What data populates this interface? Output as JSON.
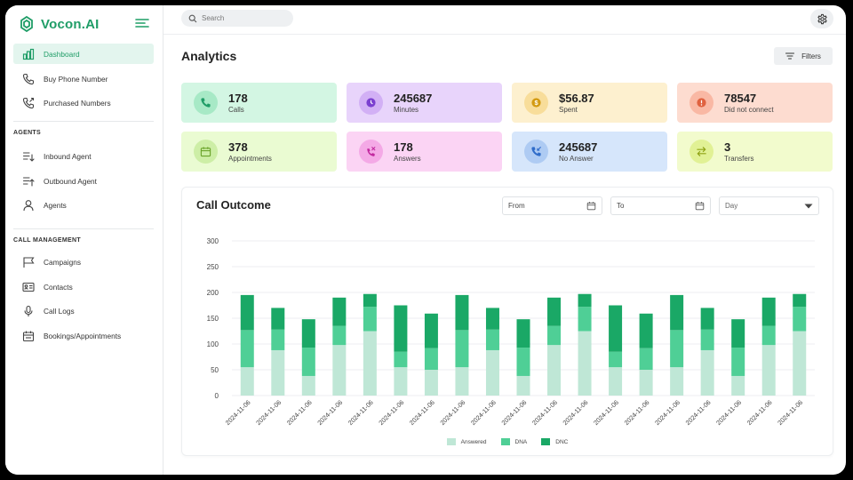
{
  "app": {
    "brand": "Vocon.AI"
  },
  "search": {
    "placeholder": "Search"
  },
  "sidebar": {
    "items": [
      {
        "id": "dashboard",
        "label": "Dashboard",
        "icon": "bar-chart-icon",
        "active": true
      },
      {
        "id": "buy-phone-number",
        "label": "Buy Phone Number",
        "icon": "phone-icon"
      },
      {
        "id": "purchased-numbers",
        "label": "Purchased Numbers",
        "icon": "phone-outgoing-icon"
      }
    ],
    "agents_section": "AGENTS",
    "agent_items": [
      {
        "id": "inbound-agent",
        "label": "Inbound Agent",
        "icon": "inbound-icon"
      },
      {
        "id": "outbound-agent",
        "label": "Outbound Agent",
        "icon": "outbound-icon"
      },
      {
        "id": "agents",
        "label": "Agents",
        "icon": "user-icon"
      }
    ],
    "call_section": "CALL MANAGEMENT",
    "call_items": [
      {
        "id": "campaigns",
        "label": "Campaigns",
        "icon": "flag-icon"
      },
      {
        "id": "contacts",
        "label": "Contacts",
        "icon": "contact-card-icon"
      },
      {
        "id": "call-logs",
        "label": "Call Logs",
        "icon": "microphone-icon"
      },
      {
        "id": "bookings",
        "label": "Bookings/Appointments",
        "icon": "calendar-icon"
      }
    ]
  },
  "main": {
    "title": "Analytics",
    "filters_label": "Filters",
    "stats": [
      {
        "id": "calls",
        "value": "178",
        "label": "Calls",
        "bg": "#d3f6e3",
        "icon_bg": "#a7e9c6",
        "icon_color": "#1f9d67",
        "icon": "phone-icon"
      },
      {
        "id": "minutes",
        "value": "245687",
        "label": "Minutes",
        "bg": "#e8d4fb",
        "icon_bg": "#d2b0f5",
        "icon_color": "#7b3fd0",
        "icon": "clock-icon"
      },
      {
        "id": "spent",
        "value": "$56.87",
        "label": "Spent",
        "bg": "#fdf0cf",
        "icon_bg": "#f8dd9a",
        "icon_color": "#d39a10",
        "icon": "dollar-icon"
      },
      {
        "id": "did-not-connect",
        "value": "78547",
        "label": "Did not connect",
        "bg": "#fddcd0",
        "icon_bg": "#f9b8a4",
        "icon_color": "#e0613f",
        "icon": "alert-icon"
      },
      {
        "id": "appointments",
        "value": "378",
        "label": "Appointments",
        "bg": "#eafbd2",
        "icon_bg": "#cdeea6",
        "icon_color": "#6aa32a",
        "icon": "calendar-icon"
      },
      {
        "id": "answers",
        "value": "178",
        "label": "Answers",
        "bg": "#fbd4f4",
        "icon_bg": "#f4a9e6",
        "icon_color": "#c2289f",
        "icon": "phone-missed-icon"
      },
      {
        "id": "no-answer",
        "value": "245687",
        "label": "No Answer",
        "bg": "#d6e6fb",
        "icon_bg": "#aecbf3",
        "icon_color": "#2f6cc9",
        "icon": "phone-incoming-icon"
      },
      {
        "id": "transfers",
        "value": "3",
        "label": "Transfers",
        "bg": "#f2fbcd",
        "icon_bg": "#e1f195",
        "icon_color": "#8fa315",
        "icon": "transfer-icon"
      }
    ]
  },
  "chart": {
    "title": "Call Outcome",
    "from_label": "From",
    "to_label": "To",
    "granularity": "Day"
  },
  "chart_data": {
    "type": "bar",
    "stacked": true,
    "categories": [
      "2024-11-06",
      "2024-11-06",
      "2024-11-06",
      "2024-11-06",
      "2024-11-06",
      "2024-11-06",
      "2024-11-06",
      "2024-11-06",
      "2024-11-06",
      "2024-11-06",
      "2024-11-06",
      "2024-11-06",
      "2024-11-06",
      "2024-11-06",
      "2024-11-06",
      "2024-11-06",
      "2024-11-06",
      "2024-11-06",
      "2024-11-06"
    ],
    "series": [
      {
        "name": "Answered",
        "color": "#bfe7d6",
        "values": [
          55,
          88,
          38,
          98,
          125,
          55,
          50,
          55,
          88,
          38,
          98,
          125,
          55,
          50,
          55,
          88,
          38,
          98,
          125
        ]
      },
      {
        "name": "DNA",
        "color": "#4fcf96",
        "values": [
          72,
          40,
          55,
          37,
          47,
          30,
          42,
          72,
          40,
          55,
          37,
          47,
          30,
          42,
          72,
          40,
          55,
          37,
          47
        ]
      },
      {
        "name": "DNC",
        "color": "#1aa866",
        "values": [
          68,
          42,
          55,
          55,
          25,
          90,
          67,
          68,
          42,
          55,
          55,
          25,
          90,
          67,
          68,
          42,
          55,
          55,
          25
        ]
      }
    ],
    "yticks": [
      0,
      50,
      100,
      150,
      200,
      250,
      300
    ],
    "ylim": [
      0,
      300
    ],
    "grid": true,
    "legend_position": "bottom"
  }
}
